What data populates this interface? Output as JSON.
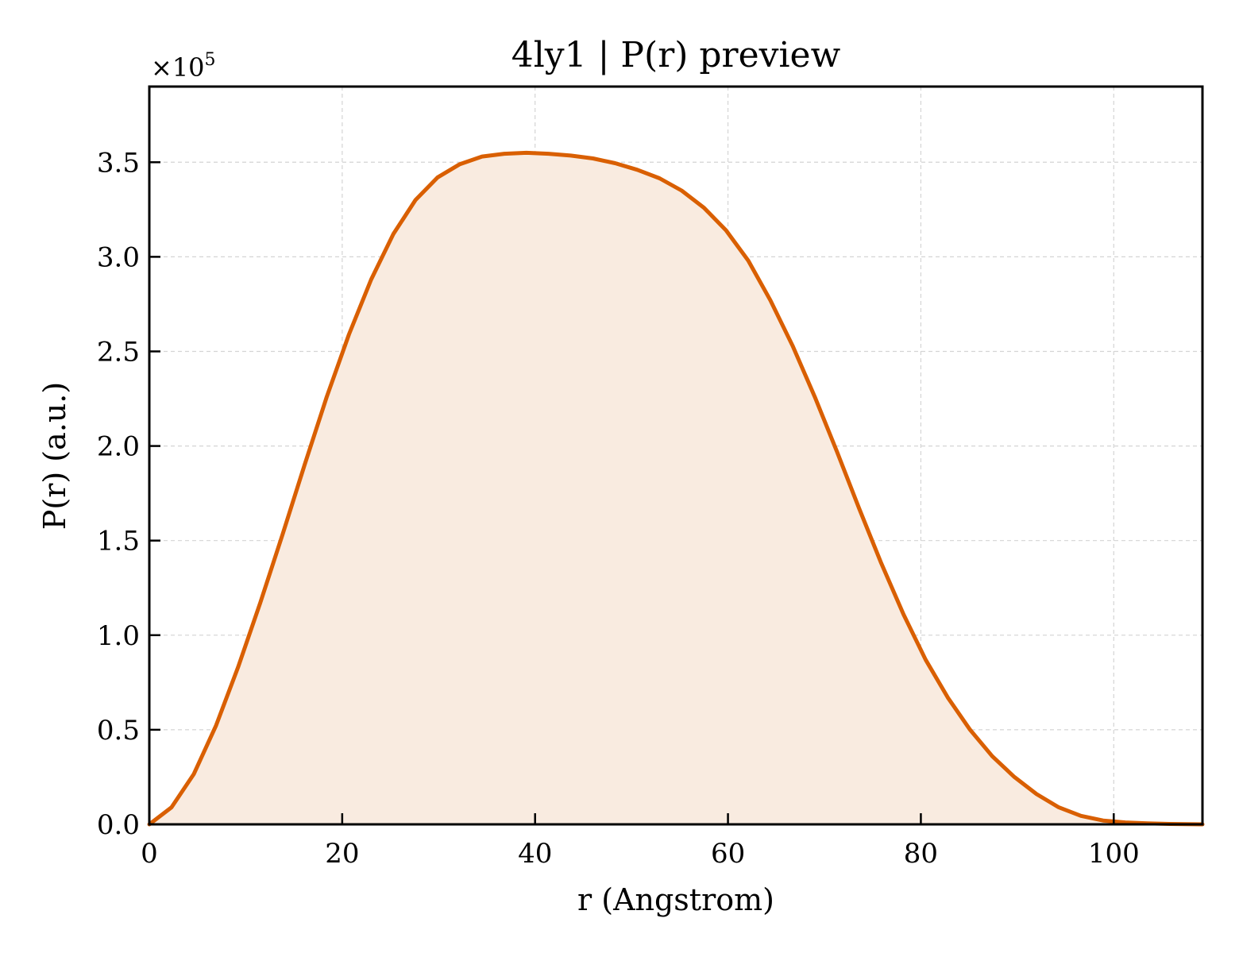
{
  "chart_data": {
    "type": "area",
    "title": "4ly1 | P(r) preview",
    "xlabel": "r (Angstrom)",
    "ylabel": "P(r) (a.u.)",
    "y_multiplier_base": "×10",
    "y_multiplier_exp": "5",
    "xlim": [
      0,
      109.2
    ],
    "ylim": [
      0,
      3.9
    ],
    "x_ticks": [
      0,
      20,
      40,
      60,
      80,
      100
    ],
    "x_tick_labels": [
      "0",
      "20",
      "40",
      "60",
      "80",
      "100"
    ],
    "y_ticks": [
      0.0,
      0.5,
      1.0,
      1.5,
      2.0,
      2.5,
      3.0,
      3.5
    ],
    "y_tick_labels": [
      "0.0",
      "0.5",
      "1.0",
      "1.5",
      "2.0",
      "2.5",
      "3.0",
      "3.5"
    ],
    "grid": true,
    "line_color": "#d95f02",
    "fill_color": "#f9ebe0",
    "series": [
      {
        "x": [
          0,
          2.3,
          4.6,
          6.9,
          9.2,
          11.5,
          13.8,
          16.1,
          18.4,
          20.7,
          23.0,
          25.3,
          27.6,
          29.9,
          32.2,
          34.5,
          36.8,
          39.1,
          41.4,
          43.7,
          46.0,
          48.3,
          50.6,
          52.9,
          55.2,
          57.5,
          59.8,
          62.1,
          64.4,
          66.7,
          69.0,
          71.3,
          73.6,
          75.9,
          78.2,
          80.5,
          82.8,
          85.1,
          87.4,
          89.7,
          92.0,
          94.3,
          96.6,
          98.9,
          101.2,
          103.5,
          105.8,
          109.2
        ],
        "values": [
          0.0,
          0.09,
          0.265,
          0.52,
          0.83,
          1.17,
          1.53,
          1.9,
          2.26,
          2.59,
          2.88,
          3.12,
          3.3,
          3.42,
          3.49,
          3.53,
          3.545,
          3.55,
          3.545,
          3.535,
          3.52,
          3.495,
          3.46,
          3.415,
          3.35,
          3.26,
          3.14,
          2.98,
          2.77,
          2.53,
          2.26,
          1.97,
          1.67,
          1.38,
          1.11,
          0.87,
          0.67,
          0.5,
          0.36,
          0.25,
          0.16,
          0.09,
          0.045,
          0.02,
          0.01,
          0.005,
          0.002,
          0.0
        ]
      }
    ]
  }
}
